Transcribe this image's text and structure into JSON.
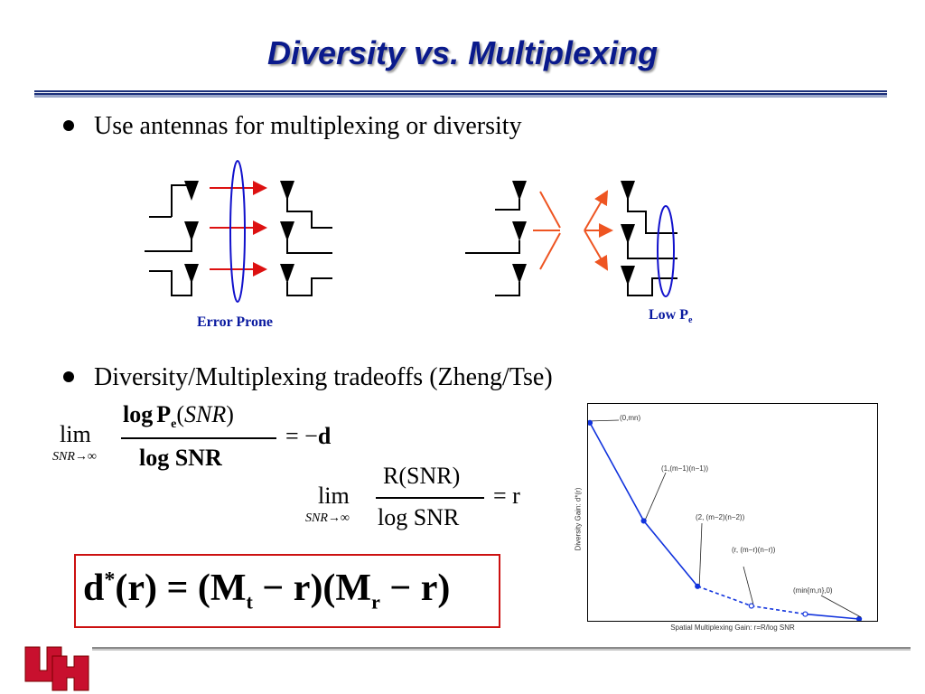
{
  "title": "Diversity vs. Multiplexing",
  "bullets": [
    "Use antennas for multiplexing or diversity",
    "Diversity/Multiplexing tradeoffs (Zheng/Tse)"
  ],
  "diagram_labels": {
    "error_prone": "Error Prone",
    "low_p": "Low P",
    "low_p_sub": "e"
  },
  "formula1": {
    "lim": "lim",
    "sub": "SNR→∞",
    "num_log": "log",
    "num_p": "P",
    "num_p_sub": "e",
    "num_arg": "(",
    "num_snr": "SNR",
    "num_close": ")",
    "den": "log SNR",
    "rhs": "= −",
    "rhs_d": "d"
  },
  "formula2": {
    "lim": "lim",
    "sub": "SNR→∞",
    "num": "R(SNR)",
    "den": "log SNR",
    "rhs": "= r"
  },
  "formula3": {
    "d": "d",
    "star": "*",
    "arg": "(r) = (M",
    "t": "t",
    "mid": " − r)(M",
    "r": "r",
    "end": " − r)"
  },
  "logo": {
    "letters": "UH",
    "color": "#c8102e"
  },
  "colors": {
    "title": "#0a1a8c",
    "arrow_red": "#dd1111",
    "arrow_orange": "#ee5522",
    "ellipse_blue": "#1111cc",
    "box_red": "#cc1111",
    "chart_line": "#1133dd"
  },
  "chart_data": {
    "type": "line",
    "xlabel": "Spatial Multiplexing Gain:  r=R/log SNR",
    "ylabel": "Diversity Gain:  d*(r)",
    "xlim": [
      0,
      5.2
    ],
    "ylim": [
      0,
      12.6
    ],
    "series": [
      {
        "style": "solid",
        "x": [
          0,
          1,
          2
        ],
        "y": [
          12,
          6,
          2
        ]
      },
      {
        "style": "dashed",
        "x": [
          2,
          3,
          4
        ],
        "y": [
          2,
          0.8,
          0.3
        ]
      },
      {
        "style": "solid",
        "x": [
          4,
          5
        ],
        "y": [
          0.3,
          0
        ]
      }
    ],
    "annotations": [
      "(0,mn)",
      "(1,(m−1)(n−1))",
      "(2, (m−2)(n−2))",
      "(r, (m−r)(n−r))",
      "(min{m,n},0)"
    ]
  }
}
